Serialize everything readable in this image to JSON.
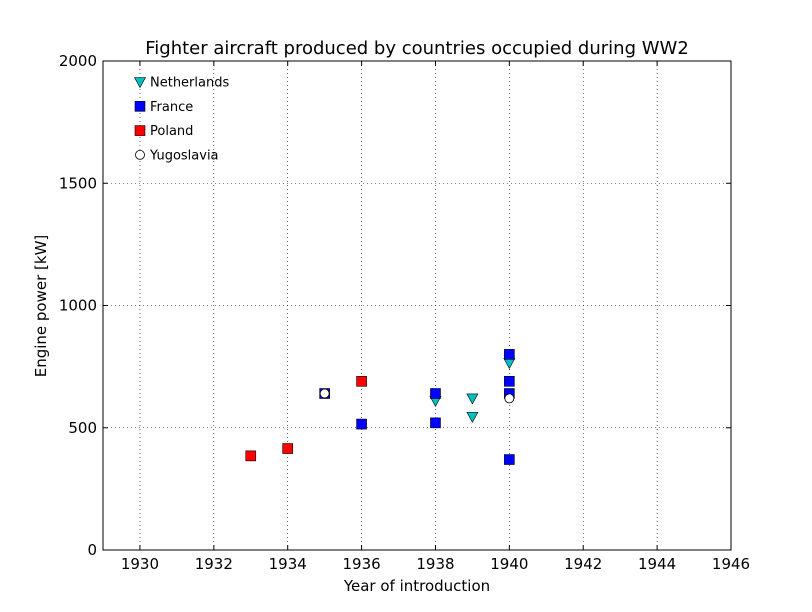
{
  "chart_data": {
    "type": "scatter",
    "title": "Fighter aircraft produced by countries occupied during WW2",
    "xlabel": "Year of introduction",
    "ylabel": "Engine power [kW]",
    "xlim": [
      1929,
      1946
    ],
    "ylim": [
      0,
      2000
    ],
    "xticks": [
      1930,
      1932,
      1934,
      1936,
      1938,
      1940,
      1942,
      1944,
      1946
    ],
    "yticks": [
      0,
      500,
      1000,
      1500,
      2000
    ],
    "grid": true,
    "legend_position": "top-left",
    "series": [
      {
        "name": "Netherlands",
        "marker": "triangle-down",
        "color": "#00bfbf",
        "points": [
          {
            "x": 1938,
            "y": 610
          },
          {
            "x": 1939,
            "y": 620
          },
          {
            "x": 1939,
            "y": 545
          },
          {
            "x": 1940,
            "y": 765
          }
        ]
      },
      {
        "name": "France",
        "marker": "square",
        "color": "#0000ff",
        "points": [
          {
            "x": 1935,
            "y": 640
          },
          {
            "x": 1936,
            "y": 515
          },
          {
            "x": 1938,
            "y": 640
          },
          {
            "x": 1938,
            "y": 520
          },
          {
            "x": 1940,
            "y": 800
          },
          {
            "x": 1940,
            "y": 690
          },
          {
            "x": 1940,
            "y": 640
          },
          {
            "x": 1940,
            "y": 370
          }
        ]
      },
      {
        "name": "Poland",
        "marker": "square",
        "color": "#ff0000",
        "points": [
          {
            "x": 1933,
            "y": 385
          },
          {
            "x": 1934,
            "y": 415
          },
          {
            "x": 1936,
            "y": 690
          }
        ]
      },
      {
        "name": "Yugoslavia",
        "marker": "circle",
        "color": "#ffffff",
        "points": [
          {
            "x": 1935,
            "y": 640
          },
          {
            "x": 1940,
            "y": 620
          }
        ]
      }
    ]
  }
}
